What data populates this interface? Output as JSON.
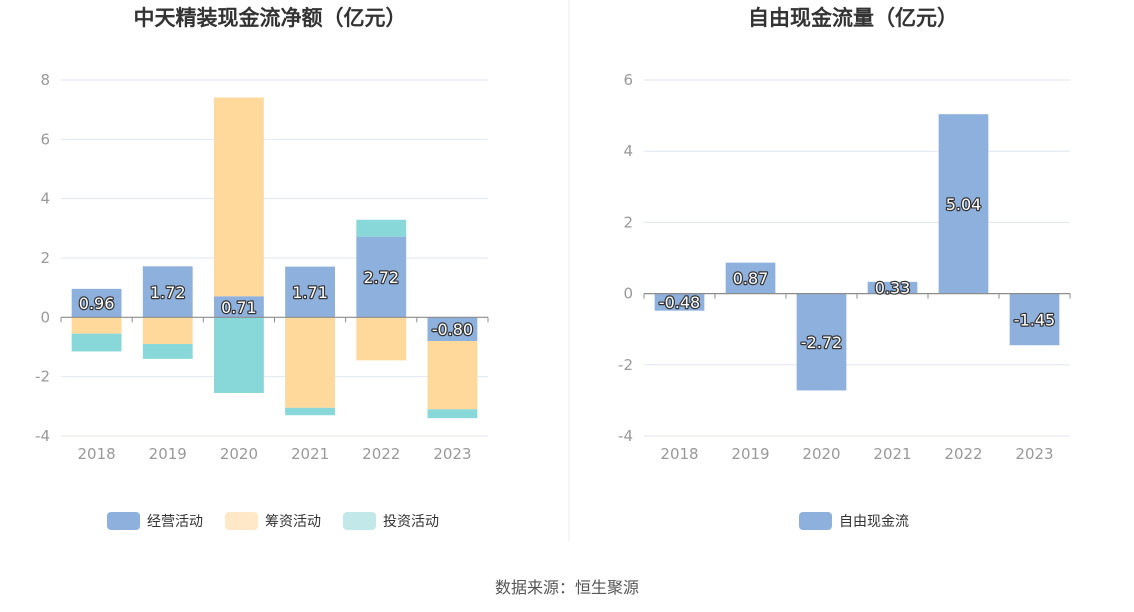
{
  "source_text": "数据来源：恒生聚源",
  "chart_data": [
    {
      "type": "bar",
      "stacked": true,
      "title": "中天精装现金流净额（亿元）",
      "categories": [
        "2018",
        "2019",
        "2020",
        "2021",
        "2022",
        "2023"
      ],
      "ylim": [
        -4,
        8
      ],
      "yticks": [
        -4,
        -2,
        0,
        2,
        4,
        6,
        8
      ],
      "grid": true,
      "legend_position": "bottom",
      "series": [
        {
          "name": "经营活动",
          "color": "#8eb0dc",
          "values": [
            0.96,
            1.72,
            0.71,
            1.71,
            2.72,
            -0.8
          ],
          "labels": [
            "0.96",
            "1.72",
            "0.71",
            "1.71",
            "2.72",
            "-0.80"
          ]
        },
        {
          "name": "筹资活动",
          "color": "#ffd89c",
          "values": [
            -0.55,
            -0.9,
            6.7,
            -3.05,
            -1.45,
            -2.3
          ]
        },
        {
          "name": "投资活动",
          "color": "#88d8da",
          "values": [
            -0.6,
            -0.5,
            -2.55,
            -0.25,
            0.57,
            -0.3
          ]
        }
      ],
      "legend_colors": [
        "#8eb0dc",
        "#ffe8c8",
        "#c2e8ea"
      ]
    },
    {
      "type": "bar",
      "title": "自由现金流量（亿元）",
      "categories": [
        "2018",
        "2019",
        "2020",
        "2021",
        "2022",
        "2023"
      ],
      "ylim": [
        -4,
        6
      ],
      "yticks": [
        -4,
        -2,
        0,
        2,
        4,
        6
      ],
      "grid": true,
      "legend_position": "bottom",
      "series": [
        {
          "name": "自由现金流",
          "color": "#8eb0dc",
          "values": [
            -0.48,
            0.87,
            -2.72,
            0.33,
            5.04,
            -1.45
          ],
          "labels": [
            "-0.48",
            "0.87",
            "-2.72",
            "0.33",
            "5.04",
            "-1.45"
          ]
        }
      ],
      "legend_colors": [
        "#8eb0dc"
      ]
    }
  ]
}
